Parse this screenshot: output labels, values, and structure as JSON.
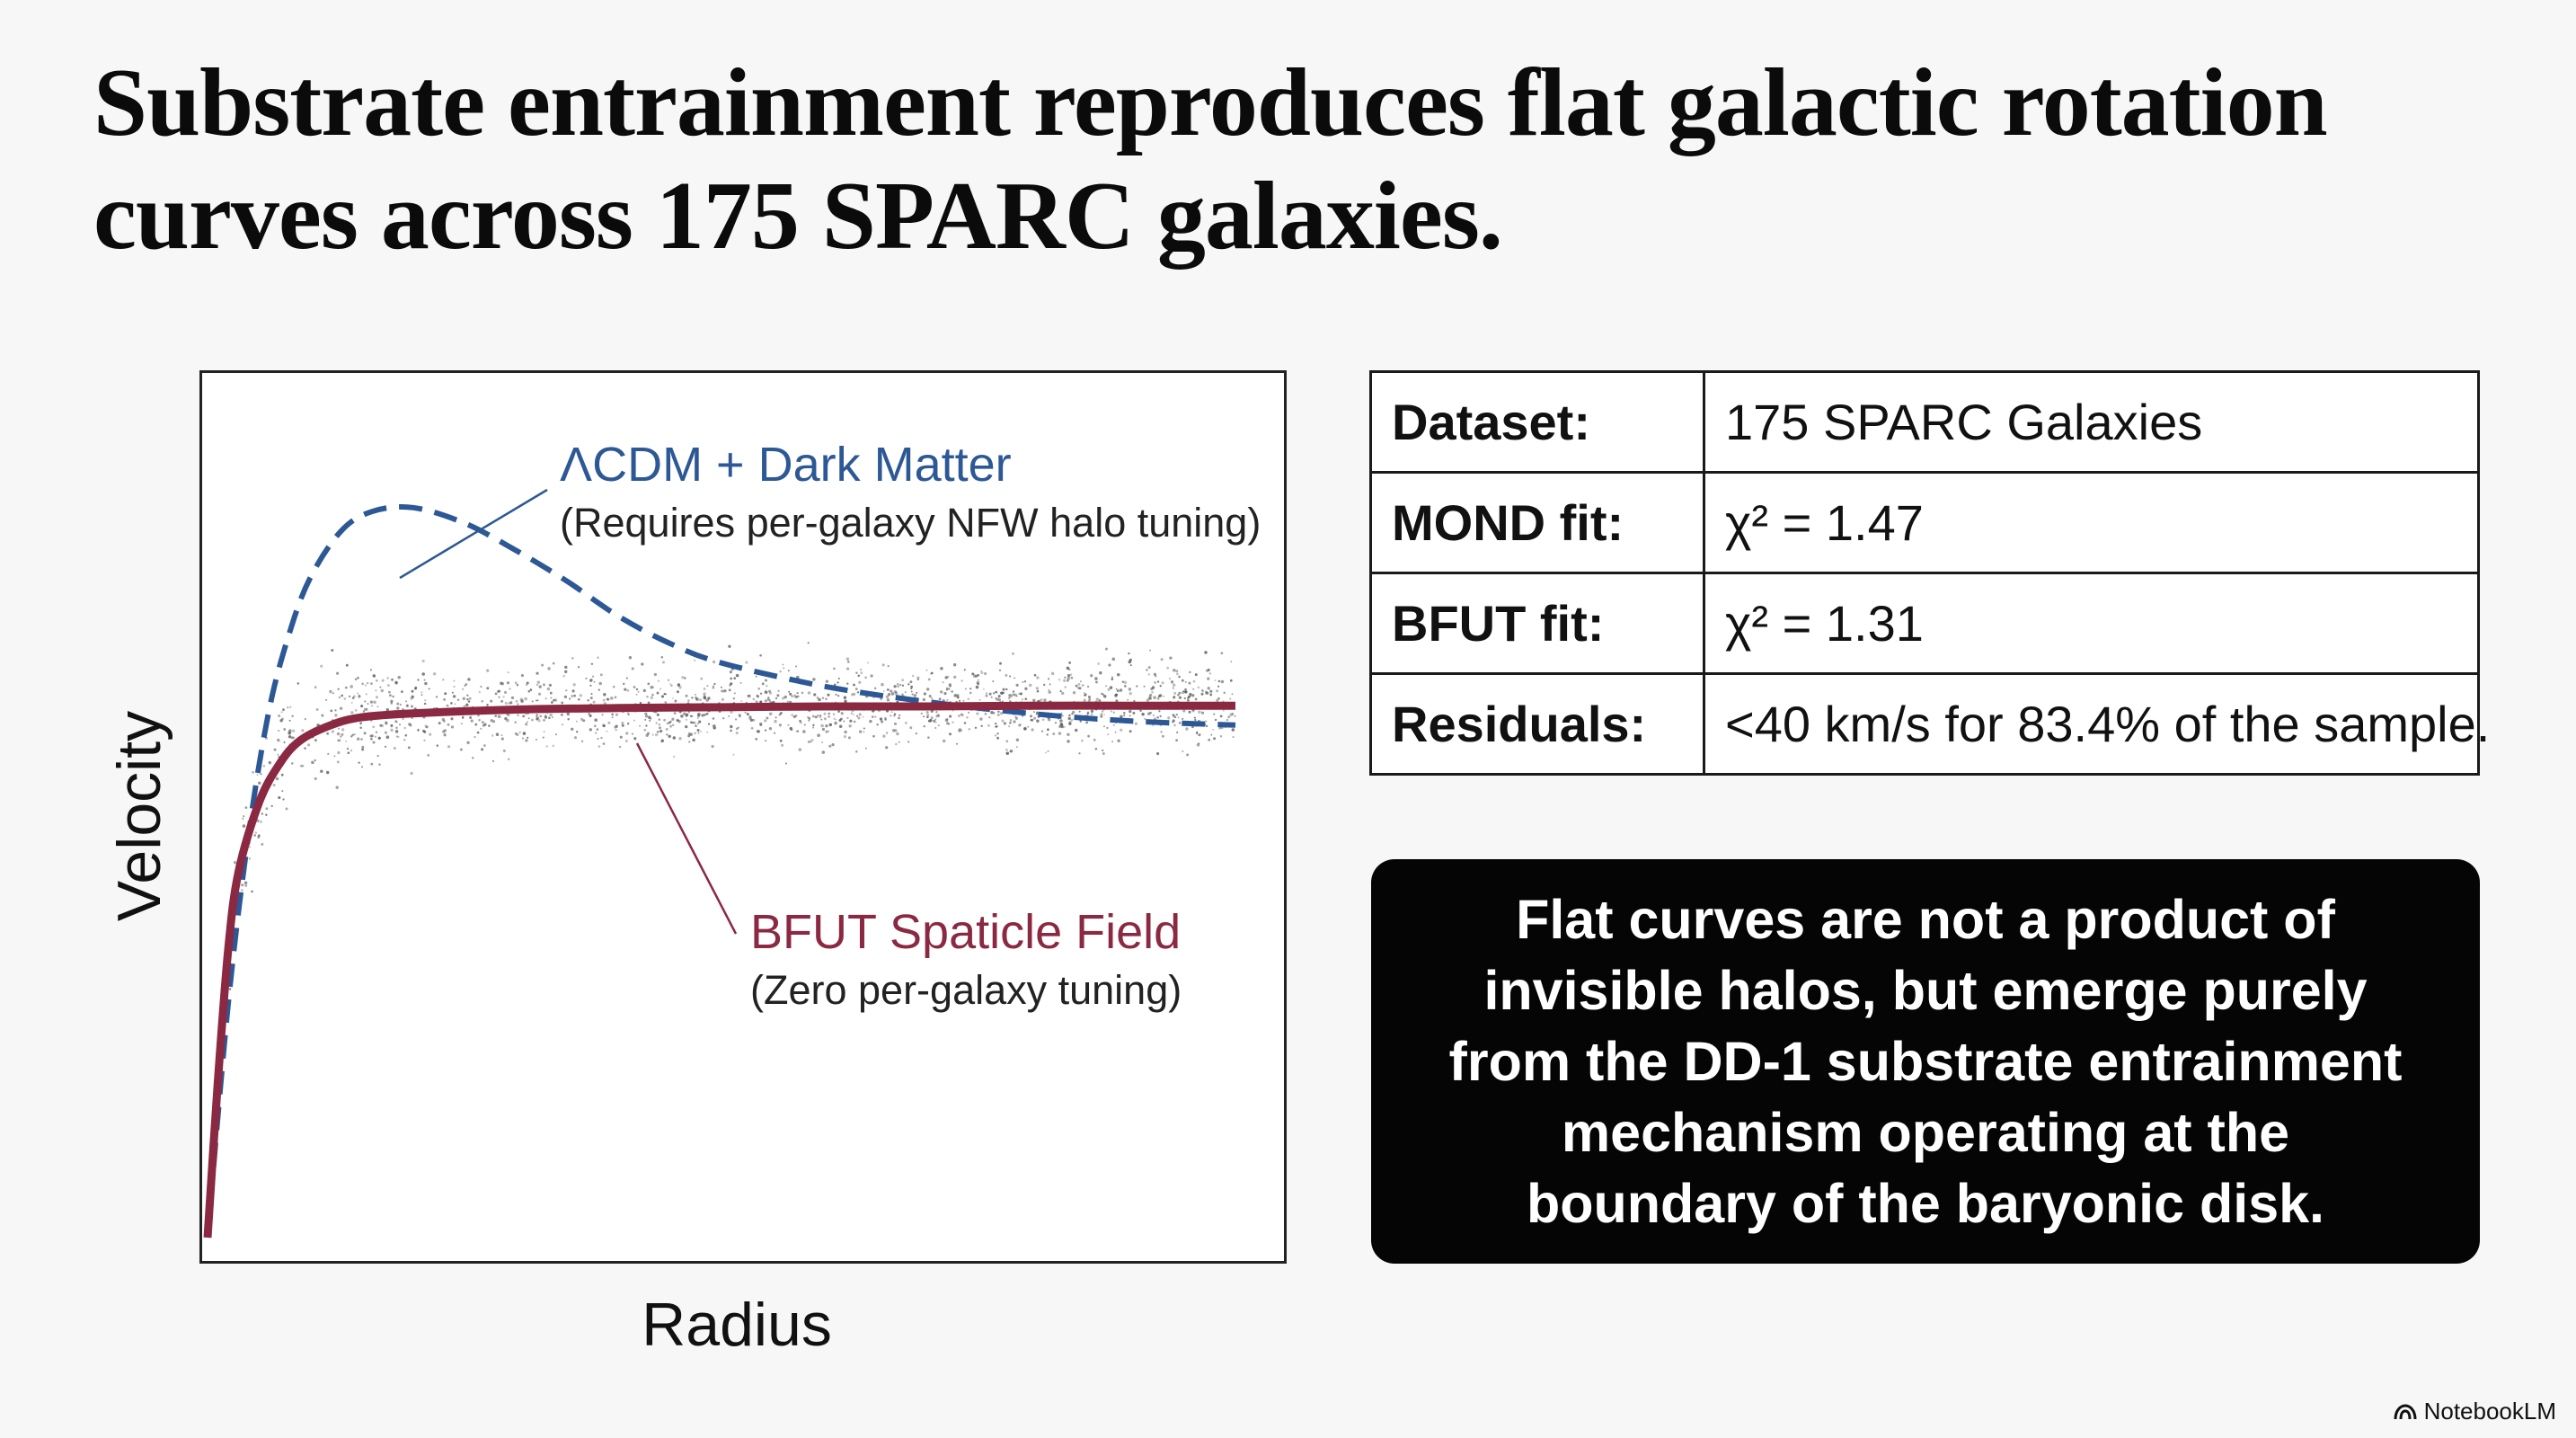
{
  "title": {
    "line1": "Substrate entrainment reproduces flat galactic rotation",
    "line2": "curves across 175 SPARC galaxies."
  },
  "chart_data": {
    "type": "line",
    "xlabel": "Radius",
    "ylabel": "Velocity",
    "series": [
      {
        "name": "ΛCDM + Dark Matter",
        "note": "(Requires per-galaxy NFW halo tuning)",
        "color": "#2d5896",
        "style": "dashed",
        "x": [
          0.0,
          0.02,
          0.04,
          0.06,
          0.08,
          0.1,
          0.13,
          0.16,
          0.2,
          0.25,
          0.3,
          0.35,
          0.4,
          0.45,
          0.5,
          0.6,
          0.7,
          0.8,
          0.9,
          1.0
        ],
        "values": [
          0.0,
          0.3,
          0.52,
          0.68,
          0.78,
          0.85,
          0.91,
          0.935,
          0.94,
          0.92,
          0.885,
          0.845,
          0.8,
          0.765,
          0.74,
          0.71,
          0.69,
          0.675,
          0.665,
          0.66
        ]
      },
      {
        "name": "BFUT Spaticle Field",
        "note": "(Zero per-galaxy tuning)",
        "color": "#8b2942",
        "style": "solid",
        "x": [
          0.0,
          0.01,
          0.02,
          0.03,
          0.05,
          0.07,
          0.09,
          0.12,
          0.15,
          0.2,
          0.3,
          0.4,
          0.5,
          0.6,
          0.7,
          0.8,
          0.9,
          1.0
        ],
        "values": [
          0.0,
          0.2,
          0.37,
          0.47,
          0.56,
          0.61,
          0.64,
          0.66,
          0.67,
          0.675,
          0.68,
          0.682,
          0.683,
          0.684,
          0.684,
          0.685,
          0.685,
          0.685
        ]
      }
    ],
    "scatter_color": "#555555"
  },
  "table": {
    "rows": [
      {
        "key": "Dataset:",
        "value": "175 SPARC Galaxies"
      },
      {
        "key": "MOND fit:",
        "value": "χ² = 1.47"
      },
      {
        "key": "BFUT fit:",
        "value": "χ² = 1.31"
      },
      {
        "key": "Residuals:",
        "value": "<40 km/s for 83.4% of the sample."
      }
    ]
  },
  "callout": {
    "lines": [
      "Flat curves are not a product of",
      "invisible halos, but emerge purely",
      "from the DD-1 substrate entrainment",
      "mechanism operating at the",
      "boundary of the baryonic disk."
    ]
  },
  "brand": {
    "name": "NotebookLM",
    "icon": "notebooklm-logo-icon"
  }
}
